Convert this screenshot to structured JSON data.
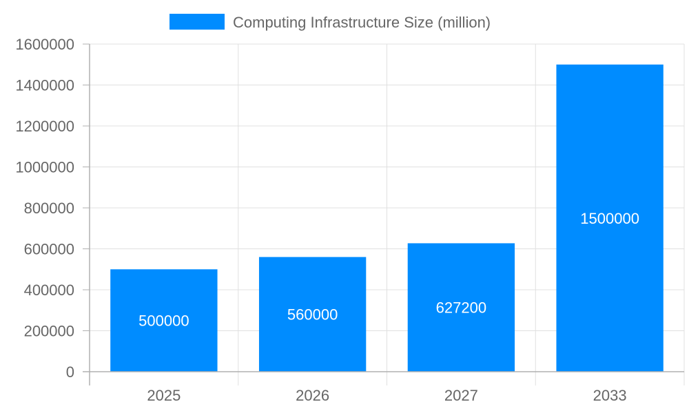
{
  "chart_data": {
    "type": "bar",
    "categories": [
      "2025",
      "2026",
      "2027",
      "2033"
    ],
    "series": [
      {
        "name": "Computing Infrastructure Size (million)",
        "values": [
          500000,
          560000,
          627200,
          1500000
        ],
        "color": "#008cff"
      }
    ],
    "data_labels": [
      "500000",
      "560000",
      "627200",
      "1500000"
    ],
    "yticks": [
      "0",
      "200000",
      "400000",
      "600000",
      "800000",
      "1000000",
      "1200000",
      "1400000",
      "1600000"
    ],
    "ylim": [
      0,
      1600000
    ],
    "grid": true,
    "legend_position": "top",
    "xlabel": "",
    "ylabel": ""
  }
}
